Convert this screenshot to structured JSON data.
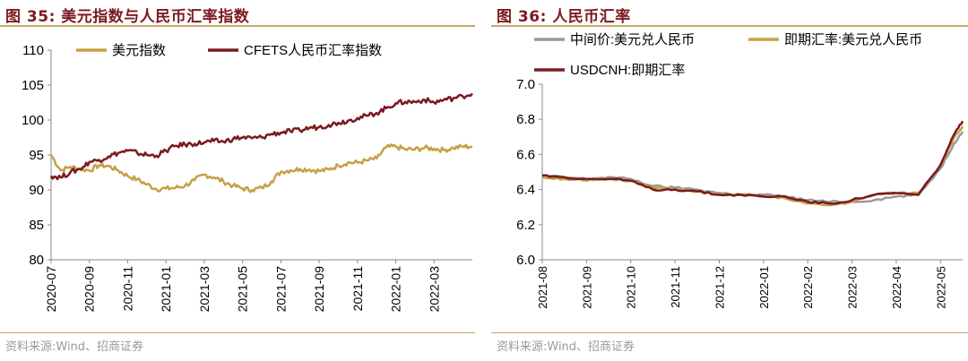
{
  "charts": [
    {
      "title": "图 35:  美元指数与人民币汇率指数",
      "source": "资料来源:Wind、招商证券",
      "chart_data": {
        "type": "line",
        "xlabel": "",
        "ylabel": "",
        "ylim": [
          80,
          110
        ],
        "yticks": [
          "80",
          "85",
          "90",
          "95",
          "100",
          "105",
          "110"
        ],
        "x_range": [
          0,
          22
        ],
        "xtick_positions": [
          0,
          2,
          4,
          6,
          8,
          10,
          12,
          14,
          16,
          18,
          20
        ],
        "categories": [
          "2020-07",
          "2020-09",
          "2020-11",
          "2021-01",
          "2021-03",
          "2021-05",
          "2021-07",
          "2021-09",
          "2021-11",
          "2022-01",
          "2022-03"
        ],
        "legend": "top",
        "series": [
          {
            "name": "美元指数",
            "color": "#c8a044",
            "x": [
              0,
              0.5,
              1,
              1.5,
              2,
              2.5,
              3,
              3.5,
              4,
              4.5,
              5,
              5.5,
              6,
              6.5,
              7,
              7.5,
              8,
              8.5,
              9,
              9.5,
              10,
              10.5,
              11,
              11.5,
              12,
              12.5,
              13,
              13.5,
              14,
              14.5,
              15,
              15.5,
              16,
              16.5,
              17,
              17.5,
              18,
              18.5,
              19,
              19.5,
              20,
              20.5,
              21,
              21.5,
              22
            ],
            "values": [
              95.0,
              92.8,
              93.3,
              93.0,
              92.8,
              93.5,
              93.4,
              92.8,
              92.0,
              91.5,
              90.8,
              90.1,
              90.2,
              90.3,
              90.6,
              91.4,
              92.2,
              91.8,
              91.2,
              90.6,
              90.2,
              90.0,
              90.3,
              91.2,
              92.6,
              92.8,
              93.0,
              92.9,
              92.7,
              92.9,
              93.5,
              93.9,
              93.9,
              94.2,
              94.5,
              96.1,
              96.2,
              95.8,
              95.8,
              96.0,
              95.9,
              95.7,
              96.0,
              96.2,
              96.2
            ]
          },
          {
            "name": "CFETS人民币汇率指数",
            "color": "#7a1a1f",
            "x": [
              0,
              0.5,
              1,
              1.5,
              2,
              2.5,
              3,
              3.5,
              4,
              4.5,
              5,
              5.5,
              6,
              6.5,
              7,
              7.5,
              8,
              8.5,
              9,
              9.5,
              10,
              10.5,
              11,
              11.5,
              12,
              12.5,
              13,
              13.5,
              14,
              14.5,
              15,
              15.5,
              16,
              16.5,
              17,
              17.5,
              18,
              18.5,
              19,
              19.5,
              20,
              20.5,
              21,
              21.5,
              22
            ],
            "values": [
              92.0,
              91.8,
              92.5,
              93.0,
              94.0,
              94.3,
              94.8,
              95.3,
              95.6,
              95.3,
              95.0,
              94.9,
              95.6,
              96.3,
              96.5,
              96.6,
              96.8,
              97.0,
              96.9,
              97.3,
              97.5,
              97.4,
              97.5,
              98.0,
              98.2,
              98.4,
              98.5,
              98.9,
              99.0,
              99.3,
              99.6,
              99.9,
              100.3,
              100.6,
              101.0,
              101.7,
              102.4,
              102.6,
              102.6,
              102.9,
              102.5,
              102.9,
              103.1,
              103.4,
              103.8
            ]
          }
        ]
      }
    },
    {
      "title": "图 36:  人民币汇率",
      "source": "资料来源:Wind、招商证券",
      "chart_data": {
        "type": "line",
        "xlabel": "",
        "ylabel": "",
        "ylim": [
          6.0,
          7.0
        ],
        "yticks": [
          "6.0",
          "6.2",
          "6.4",
          "6.6",
          "6.8",
          "7.0"
        ],
        "x_range": [
          0,
          9.5
        ],
        "xtick_positions": [
          0,
          1,
          2,
          3,
          4,
          5,
          6,
          7,
          8,
          9
        ],
        "categories": [
          "2021-08",
          "2021-09",
          "2021-10",
          "2021-11",
          "2021-12",
          "2022-01",
          "2022-02",
          "2022-03",
          "2022-04",
          "2022-05"
        ],
        "legend": "top",
        "series": [
          {
            "name": "中间价:美元兑人民币",
            "color": "#999999",
            "x": [
              0,
              0.5,
              1,
              1.5,
              2,
              2.5,
              3,
              3.5,
              4,
              4.5,
              5,
              5.5,
              6,
              6.5,
              7,
              7.5,
              8,
              8.5,
              9,
              9.3,
              9.5
            ],
            "values": [
              6.48,
              6.47,
              6.46,
              6.47,
              6.46,
              6.42,
              6.41,
              6.4,
              6.38,
              6.37,
              6.37,
              6.36,
              6.34,
              6.33,
              6.33,
              6.34,
              6.36,
              6.37,
              6.52,
              6.66,
              6.73
            ]
          },
          {
            "name": "即期汇率:美元兑人民币",
            "color": "#c8a044",
            "x": [
              0,
              0.5,
              1,
              1.5,
              2,
              2.5,
              3,
              3.5,
              4,
              4.5,
              5,
              5.5,
              6,
              6.5,
              7,
              7.5,
              8,
              8.5,
              9,
              9.3,
              9.5
            ],
            "values": [
              6.47,
              6.46,
              6.45,
              6.46,
              6.45,
              6.41,
              6.4,
              6.39,
              6.37,
              6.37,
              6.36,
              6.35,
              6.32,
              6.31,
              6.33,
              6.37,
              6.38,
              6.38,
              6.54,
              6.69,
              6.76
            ]
          },
          {
            "name": "USDCNH:即期汇率",
            "color": "#7a1a1f",
            "x": [
              0,
              0.5,
              1,
              1.5,
              2,
              2.5,
              3,
              3.5,
              4,
              4.5,
              5,
              5.5,
              6,
              6.5,
              7,
              7.5,
              8,
              8.5,
              9,
              9.3,
              9.5
            ],
            "values": [
              6.48,
              6.47,
              6.46,
              6.46,
              6.45,
              6.4,
              6.4,
              6.39,
              6.37,
              6.37,
              6.36,
              6.36,
              6.33,
              6.32,
              6.34,
              6.37,
              6.38,
              6.37,
              6.54,
              6.71,
              6.79
            ]
          }
        ]
      }
    }
  ]
}
